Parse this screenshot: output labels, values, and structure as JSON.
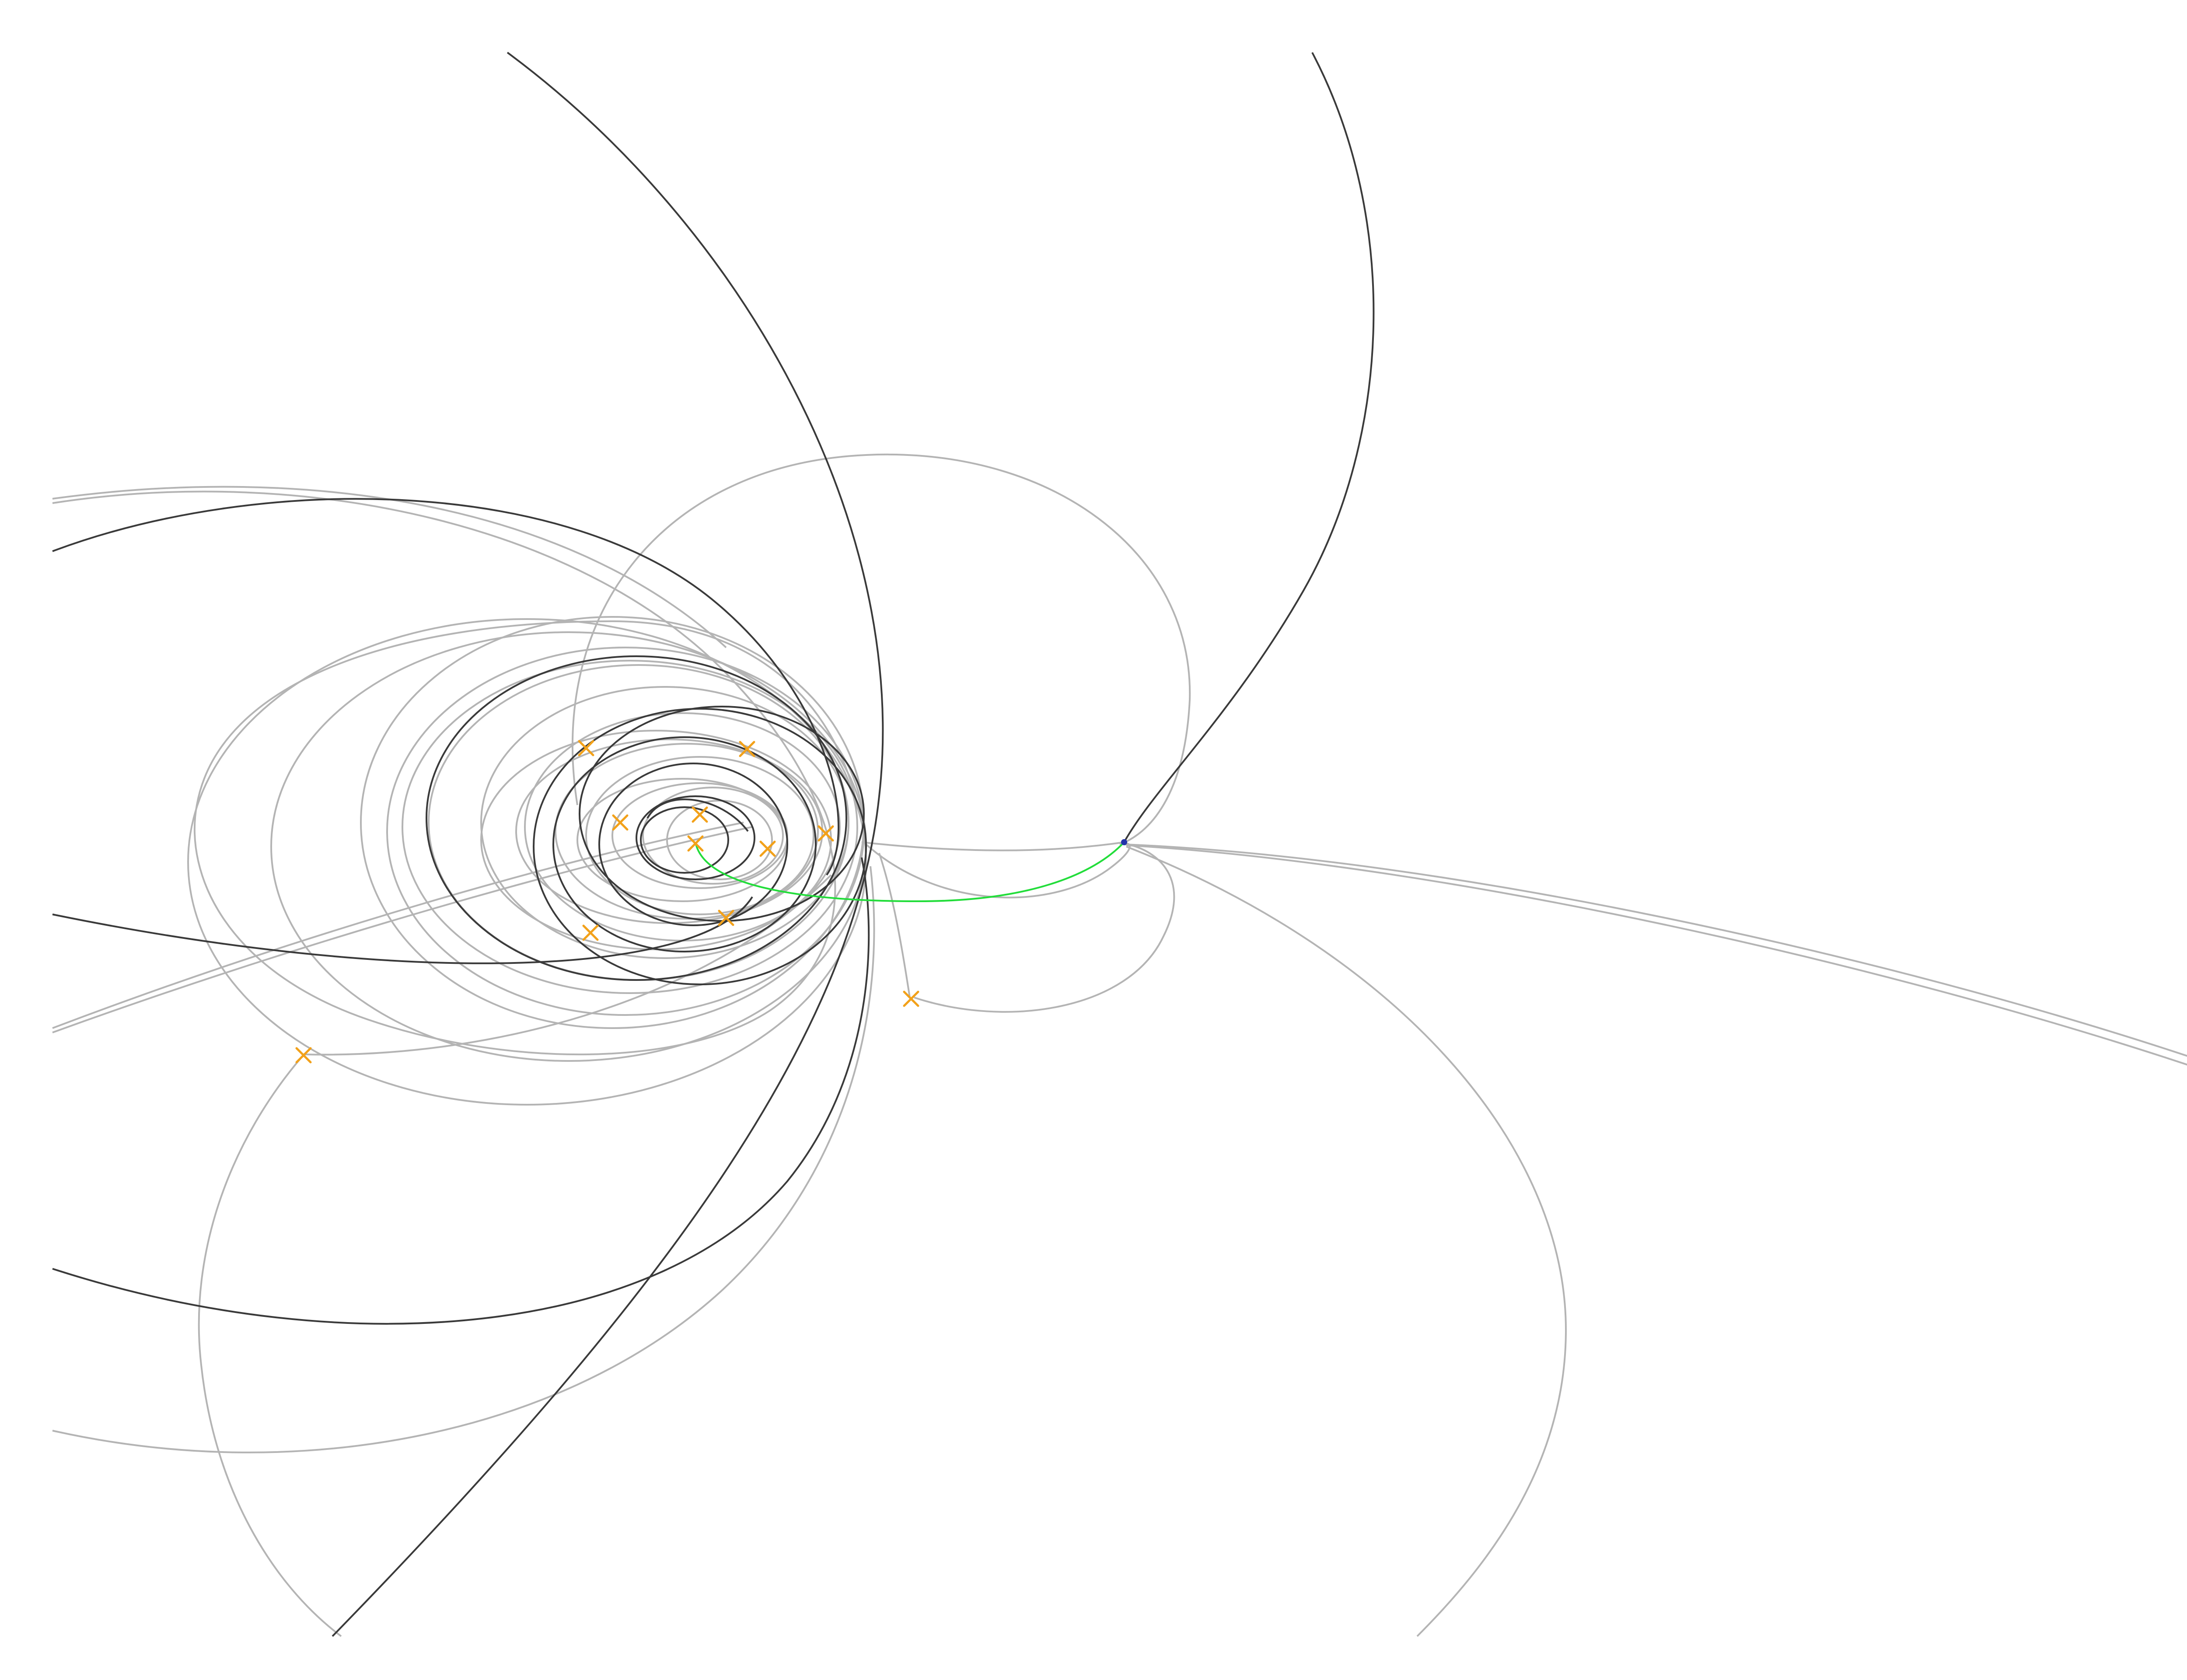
{
  "diagram": {
    "background": "#ffffff",
    "colors": {
      "trajectory_primary": "#3a3a3a",
      "trajectory_secondary": "#b4b4b4",
      "transfer_path": "#22dd3a",
      "event_marker": "#f2a11a",
      "origin_point": "#2233aa"
    },
    "legend": {
      "trajectory_primary": "",
      "trajectory_secondary": "",
      "transfer_path": "",
      "event_marker": "",
      "origin_point": ""
    },
    "marker_icon": "x-cross-icon",
    "origin_icon": "dot-icon"
  }
}
